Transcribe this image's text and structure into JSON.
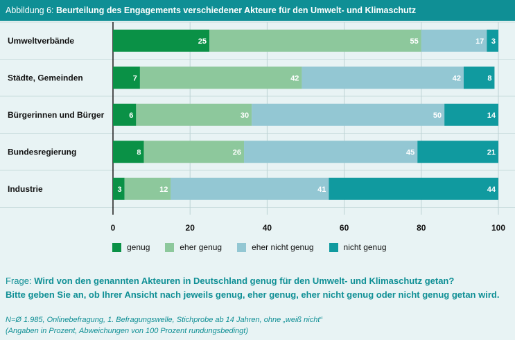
{
  "header": {
    "label": "Abbildung 6:",
    "title": "Beurteilung des Engagements verschiedener Akteure für den Umwelt- und Klimaschutz"
  },
  "chart_data": {
    "type": "bar",
    "orientation": "horizontal",
    "stacked": true,
    "categories": [
      "Umweltverbände",
      "Städte, Gemeinden",
      "Bürgerinnen und Bürger",
      "Bundesregierung",
      "Industrie"
    ],
    "series": [
      {
        "name": "genug",
        "color": "#0a9146",
        "values": [
          25,
          7,
          6,
          8,
          3
        ]
      },
      {
        "name": "eher genug",
        "color": "#8dc89c",
        "values": [
          55,
          42,
          30,
          26,
          12
        ]
      },
      {
        "name": "eher nicht genug",
        "color": "#93c7d3",
        "values": [
          17,
          42,
          50,
          45,
          41
        ]
      },
      {
        "name": "nicht genug",
        "color": "#109a9f",
        "values": [
          3,
          8,
          14,
          21,
          44
        ]
      }
    ],
    "xlim": [
      0,
      100
    ],
    "xticks": [
      0,
      20,
      40,
      60,
      80,
      100
    ],
    "grid": true,
    "legend_position": "bottom"
  },
  "question": {
    "prefix": "Frage:",
    "text": "Wird von den genannten Akteuren in Deutschland genug für den Umwelt- und Klimaschutz getan?",
    "subtext": "Bitte geben Sie an, ob Ihrer Ansicht nach jeweils genug, eher genug, eher nicht genug oder nicht genug getan wird."
  },
  "footnote": {
    "line1": "N=Ø 1.985, Onlinebefragung, 1. Befragungswelle, Stichprobe ab 14 Jahren, ohne „weiß nicht“",
    "line2": "(Angaben in Prozent, Abweichungen von 100 Prozent rundungsbedingt)"
  }
}
